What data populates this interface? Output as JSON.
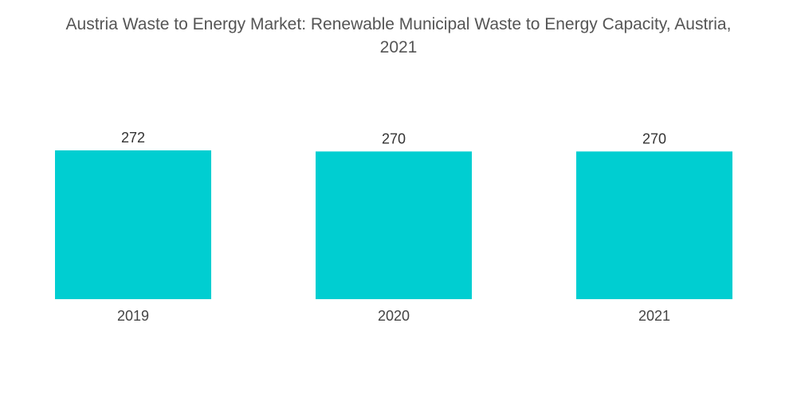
{
  "chart_data": {
    "type": "bar",
    "title_line1": "Austria Waste to Energy Market: Renewable Municipal Waste to Energy Capacity, Austria,",
    "title_line2": "2021",
    "categories": [
      "2019",
      "2020",
      "2021"
    ],
    "values": [
      272,
      270,
      270
    ],
    "xlabel": "",
    "ylabel": "",
    "ylim": [
      0,
      272
    ],
    "grid": false,
    "legend": "none",
    "bar_color": "#00CED1"
  }
}
